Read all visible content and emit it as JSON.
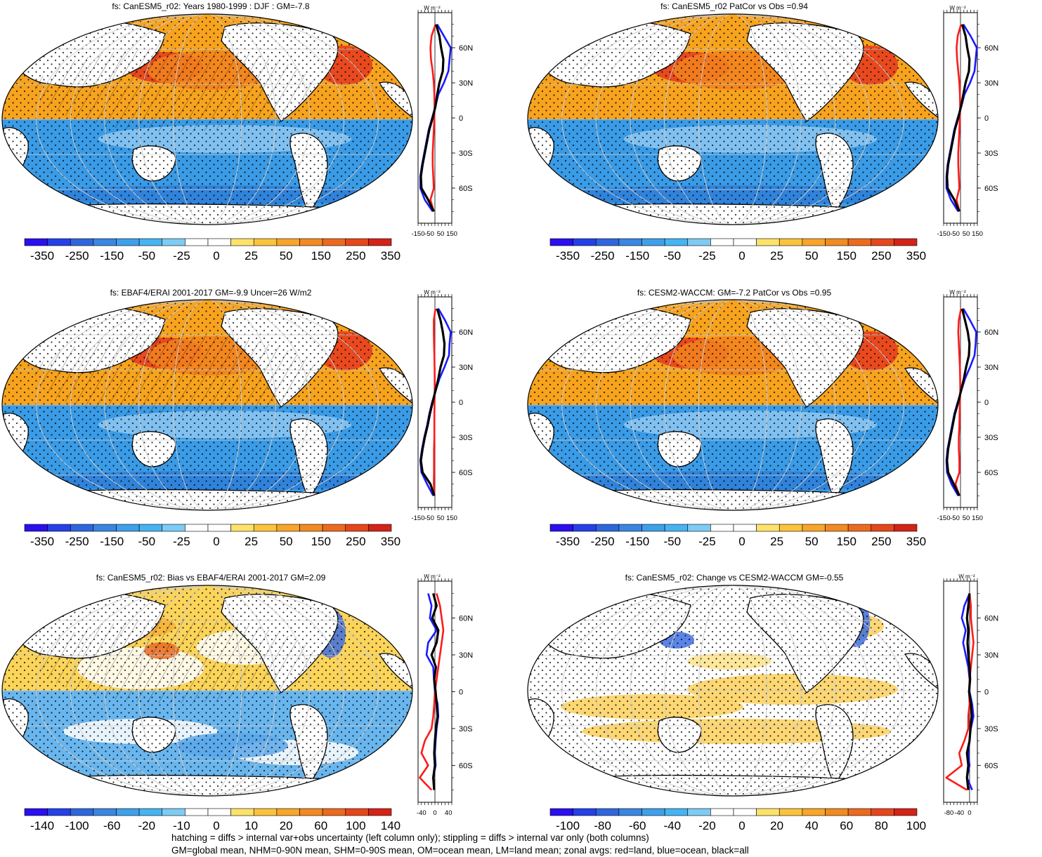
{
  "colors": {
    "land": "#ffffff",
    "warm_ocean": "#f7a31e",
    "warm_strong": "#e63a1f",
    "cold_ocean": "#3a9be6",
    "cold_light": "#8ec8f2",
    "coast": "#000000",
    "zonal_land": "#ff1a1a",
    "zonal_ocean": "#1a1aff",
    "zonal_all": "#000000",
    "grid": "#cccccc"
  },
  "colorbar_colors": [
    "#2a0ff0",
    "#2540e6",
    "#2f66dd",
    "#3a86e0",
    "#3fa0ea",
    "#47b4f2",
    "#7ecbf4",
    "#ffffff",
    "#ffffff",
    "#fde26a",
    "#fbc33d",
    "#f8a52a",
    "#f28a22",
    "#ec6a1f",
    "#e6461c",
    "#d42317"
  ],
  "footnote": {
    "line1": "hatching = diffs > internal var+obs uncertainty (left column only); stippling = diffs > internal var only (both columns)",
    "line2": "GM=global mean, NHM=0-90N mean, SHM=0-90S mean, OM=ocean mean, LM=land mean; zonal avgs: red=land, blue=ocean, black=all"
  },
  "chart_data": [
    {
      "type": "heatmap",
      "title": "fs: CanESM5_r02: Years 1980-1999 : DJF : GM=-7.8",
      "pattern": "abs",
      "colorbar_labels": [
        "-350",
        "-250",
        "-150",
        "-50",
        "-25",
        "0",
        "25",
        "50",
        "150",
        "250",
        "350"
      ],
      "zonal": {
        "unit": "W m⁻²",
        "xlim": [
          -150,
          150
        ],
        "xticks": [
          "-150",
          "-50",
          "50",
          "150"
        ],
        "yticks": [
          "60N",
          "30N",
          "0",
          "30S",
          "60S"
        ],
        "lat": [
          80,
          70,
          60,
          50,
          40,
          30,
          20,
          10,
          0,
          -10,
          -20,
          -30,
          -40,
          -50,
          -60,
          -70,
          -80
        ],
        "all": [
          10,
          40,
          55,
          75,
          70,
          40,
          20,
          5,
          -20,
          -50,
          -70,
          -90,
          -110,
          -125,
          -120,
          -60,
          -10
        ],
        "ocean": [
          20,
          80,
          140,
          130,
          120,
          80,
          30,
          5,
          -25,
          -55,
          -75,
          -95,
          -115,
          -130,
          -130,
          -90,
          -20
        ],
        "land": [
          5,
          -30,
          -40,
          -35,
          -20,
          -10,
          -5,
          -3,
          -5,
          -10,
          -15,
          -20,
          -20,
          -15,
          -10,
          -40,
          -10
        ]
      }
    },
    {
      "type": "heatmap",
      "title": "fs: CanESM5_r02 PatCor vs Obs =0.94",
      "pattern": "abs",
      "colorbar_labels": [
        "-350",
        "-250",
        "-150",
        "-50",
        "-25",
        "0",
        "25",
        "50",
        "150",
        "250",
        "350"
      ],
      "zonal": {
        "unit": "W m⁻²",
        "xlim": [
          -150,
          150
        ],
        "xticks": [
          "-150",
          "-50",
          "50",
          "150"
        ],
        "yticks": [
          "60N",
          "30N",
          "0",
          "30S",
          "60S"
        ],
        "lat": [
          80,
          70,
          60,
          50,
          40,
          30,
          20,
          10,
          0,
          -10,
          -20,
          -30,
          -40,
          -50,
          -60,
          -70,
          -80
        ],
        "all": [
          15,
          45,
          60,
          80,
          75,
          45,
          25,
          5,
          -20,
          -50,
          -70,
          -90,
          -110,
          -120,
          -115,
          -55,
          -10
        ],
        "ocean": [
          25,
          90,
          145,
          135,
          125,
          85,
          35,
          8,
          -25,
          -55,
          -75,
          -95,
          -115,
          -125,
          -125,
          -85,
          -20
        ],
        "land": [
          5,
          -25,
          -35,
          -30,
          -20,
          -10,
          -5,
          -3,
          -5,
          -10,
          -15,
          -20,
          -20,
          -15,
          -10,
          -35,
          -10
        ]
      }
    },
    {
      "type": "heatmap",
      "title": "fs: EBAF4/ERAI 2001-2017 GM=-9.9 Uncer=26 W/m2",
      "pattern": "abs",
      "colorbar_labels": [
        "-350",
        "-250",
        "-150",
        "-50",
        "-25",
        "0",
        "25",
        "50",
        "150",
        "250",
        "350"
      ],
      "zonal": {
        "unit": "W m⁻²",
        "xlim": [
          -150,
          150
        ],
        "xticks": [
          "-150",
          "-50",
          "50",
          "150"
        ],
        "yticks": [
          "60N",
          "30N",
          "0",
          "30S",
          "60S"
        ],
        "lat": [
          80,
          70,
          60,
          50,
          40,
          30,
          20,
          10,
          0,
          -10,
          -20,
          -30,
          -40,
          -50,
          -60,
          -70,
          -80
        ],
        "all": [
          20,
          50,
          70,
          85,
          80,
          50,
          30,
          5,
          -20,
          -45,
          -65,
          -90,
          -110,
          -125,
          -110,
          -40,
          -5
        ],
        "ocean": [
          30,
          90,
          140,
          130,
          125,
          85,
          40,
          8,
          -25,
          -50,
          -70,
          -95,
          -115,
          -130,
          -120,
          -70,
          -15
        ],
        "land": [
          5,
          -10,
          -10,
          -8,
          -5,
          -3,
          -2,
          -2,
          -3,
          -5,
          -5,
          -5,
          -8,
          -8,
          -8,
          -10,
          -5
        ]
      }
    },
    {
      "type": "heatmap",
      "title": "fs: CESM2-WACCM: GM=-7.2 PatCor vs Obs =0.95",
      "pattern": "abs",
      "colorbar_labels": [
        "-350",
        "-250",
        "-150",
        "-50",
        "-25",
        "0",
        "25",
        "50",
        "150",
        "250",
        "350"
      ],
      "zonal": {
        "unit": "W m⁻²",
        "xlim": [
          -150,
          150
        ],
        "xticks": [
          "-150",
          "-50",
          "50",
          "150"
        ],
        "yticks": [
          "60N",
          "30N",
          "0",
          "30S",
          "60S"
        ],
        "lat": [
          80,
          70,
          60,
          50,
          40,
          30,
          20,
          10,
          0,
          -10,
          -20,
          -30,
          -40,
          -50,
          -60,
          -70,
          -80
        ],
        "all": [
          15,
          40,
          65,
          80,
          75,
          50,
          30,
          5,
          -20,
          -50,
          -70,
          -90,
          -110,
          -120,
          -110,
          -60,
          -10
        ],
        "ocean": [
          25,
          85,
          140,
          135,
          125,
          85,
          40,
          8,
          -25,
          -55,
          -75,
          -95,
          -115,
          -125,
          -120,
          -80,
          -20
        ],
        "land": [
          5,
          -15,
          -20,
          -15,
          -10,
          -5,
          -3,
          -2,
          -5,
          -8,
          -10,
          -15,
          -15,
          -10,
          -10,
          -45,
          -10
        ]
      }
    },
    {
      "type": "heatmap",
      "title": "fs: CanESM5_r02: Bias vs EBAF4/ERAI 2001-2017 GM=2.09",
      "pattern": "bias",
      "colorbar_labels": [
        "-140",
        "-100",
        "-60",
        "-20",
        "-10",
        "0",
        "10",
        "20",
        "60",
        "100",
        "140"
      ],
      "zonal": {
        "unit": "W m⁻²",
        "xlim": [
          -50,
          50
        ],
        "xticks": [
          "-40",
          "0",
          "40"
        ],
        "yticks": [
          "60N",
          "30N",
          "0",
          "30S",
          "60S"
        ],
        "lat": [
          80,
          70,
          60,
          50,
          40,
          30,
          20,
          10,
          0,
          -10,
          -20,
          -30,
          -40,
          -50,
          -60,
          -70,
          -80
        ],
        "all": [
          -5,
          5,
          -8,
          10,
          5,
          -10,
          3,
          -2,
          2,
          5,
          8,
          3,
          0,
          -2,
          0,
          -5,
          -2
        ],
        "ocean": [
          -20,
          -10,
          -15,
          5,
          -20,
          -25,
          -5,
          -3,
          0,
          8,
          10,
          5,
          2,
          0,
          2,
          -5,
          -3
        ],
        "land": [
          5,
          15,
          20,
          25,
          20,
          15,
          10,
          5,
          0,
          -2,
          -5,
          -10,
          -30,
          -40,
          -20,
          -45,
          -10
        ]
      }
    },
    {
      "type": "heatmap",
      "title": "fs: CanESM5_r02: Change vs CESM2-WACCM GM=-0.55",
      "pattern": "change",
      "colorbar_labels": [
        "-100",
        "-80",
        "-60",
        "-40",
        "-20",
        "0",
        "20",
        "40",
        "60",
        "80",
        "100"
      ],
      "zonal": {
        "unit": "W m⁻²",
        "xlim": [
          -100,
          30
        ],
        "xticks": [
          "-80",
          "-40",
          "0"
        ],
        "yticks": [
          "60N",
          "30N",
          "0",
          "30S",
          "60S"
        ],
        "lat": [
          80,
          70,
          60,
          50,
          40,
          30,
          20,
          10,
          0,
          -10,
          -20,
          -30,
          -40,
          -50,
          -60,
          -70,
          -80
        ],
        "all": [
          0,
          -5,
          -10,
          -5,
          -8,
          -5,
          0,
          2,
          -2,
          5,
          8,
          3,
          0,
          -10,
          -5,
          -10,
          -5
        ],
        "ocean": [
          0,
          -20,
          -30,
          -15,
          -25,
          -15,
          -5,
          0,
          0,
          10,
          15,
          5,
          0,
          -5,
          0,
          -10,
          10
        ],
        "land": [
          0,
          5,
          5,
          10,
          15,
          10,
          5,
          0,
          -2,
          0,
          -5,
          -5,
          -20,
          -40,
          -30,
          -90,
          -10
        ]
      }
    }
  ]
}
